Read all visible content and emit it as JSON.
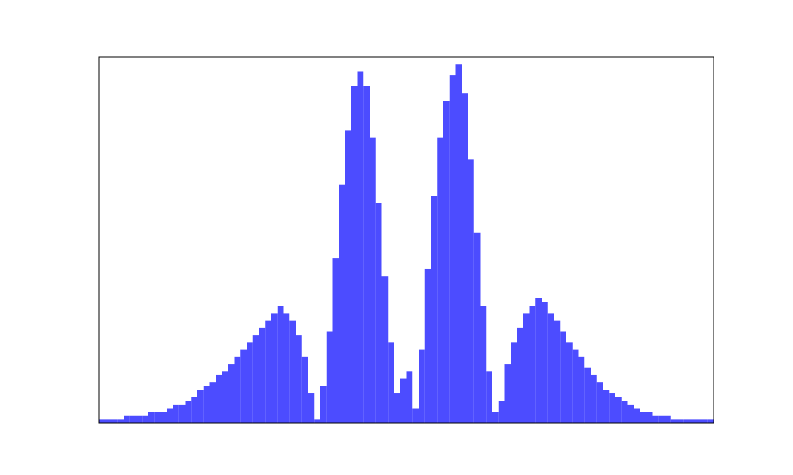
{
  "chart_data": {
    "type": "histogram",
    "color": "#4c4cff",
    "bins": [
      0,
      1,
      2,
      3,
      4,
      5,
      6,
      7,
      8,
      9,
      10,
      11,
      12,
      13,
      14,
      15,
      16,
      17,
      18,
      19,
      20,
      21,
      22,
      23,
      24,
      25,
      26,
      27,
      28,
      29,
      30,
      31,
      32,
      33,
      34,
      35,
      36,
      37,
      38,
      39,
      40,
      41,
      42,
      43,
      44,
      45,
      46,
      47,
      48,
      49,
      50,
      51,
      52,
      53,
      54,
      55,
      56,
      57,
      58,
      59,
      60,
      61,
      62,
      63,
      64,
      65,
      66,
      67,
      68,
      69,
      70,
      71,
      72,
      73,
      74,
      75,
      76,
      77,
      78,
      79,
      80,
      81,
      82,
      83,
      84,
      85,
      86,
      87,
      88,
      89,
      90,
      91,
      92,
      93,
      94,
      95,
      96,
      97,
      98,
      99,
      100
    ],
    "values": [
      1,
      1,
      1,
      1,
      2,
      2,
      2,
      2,
      3,
      3,
      3,
      4,
      5,
      5,
      6,
      7,
      9,
      10,
      11,
      13,
      14,
      16,
      18,
      20,
      22,
      24,
      26,
      28,
      30,
      32,
      30,
      28,
      24,
      18,
      8,
      1,
      10,
      25,
      45,
      65,
      80,
      92,
      96,
      92,
      78,
      60,
      40,
      22,
      8,
      12,
      14,
      4,
      20,
      42,
      62,
      78,
      88,
      95,
      98,
      90,
      72,
      52,
      32,
      14,
      3,
      6,
      16,
      22,
      26,
      30,
      32,
      34,
      33,
      30,
      28,
      25,
      22,
      20,
      18,
      15,
      13,
      11,
      9,
      8,
      7,
      6,
      5,
      4,
      3,
      3,
      2,
      2,
      2,
      1,
      1,
      1,
      1,
      1,
      1,
      1
    ],
    "xlim": [
      0,
      100
    ],
    "ylim": [
      0,
      100
    ]
  }
}
